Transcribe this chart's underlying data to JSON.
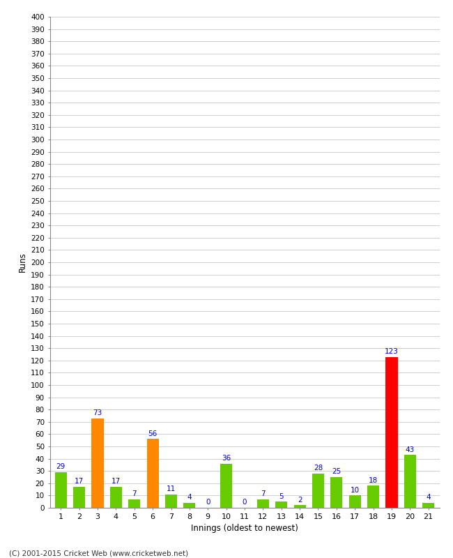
{
  "xlabel": "Innings (oldest to newest)",
  "ylabel": "Runs",
  "categories": [
    "1",
    "2",
    "3",
    "4",
    "5",
    "6",
    "7",
    "8",
    "9",
    "10",
    "11",
    "12",
    "13",
    "14",
    "15",
    "16",
    "17",
    "18",
    "19",
    "20",
    "21"
  ],
  "values": [
    29,
    17,
    73,
    17,
    7,
    56,
    11,
    4,
    0,
    36,
    0,
    7,
    5,
    2,
    28,
    25,
    10,
    18,
    123,
    43,
    4
  ],
  "colors": [
    "#66cc00",
    "#66cc00",
    "#ff8800",
    "#66cc00",
    "#66cc00",
    "#ff8800",
    "#66cc00",
    "#66cc00",
    "#66cc00",
    "#66cc00",
    "#66cc00",
    "#66cc00",
    "#66cc00",
    "#66cc00",
    "#66cc00",
    "#66cc00",
    "#66cc00",
    "#66cc00",
    "#ff0000",
    "#66cc00",
    "#66cc00"
  ],
  "ylim": [
    0,
    400
  ],
  "ytick_step": 10,
  "label_color": "#0000cc",
  "background_color": "#ffffff",
  "grid_color": "#bbbbbb",
  "footer": "(C) 2001-2015 Cricket Web (www.cricketweb.net)",
  "bar_width": 0.65
}
